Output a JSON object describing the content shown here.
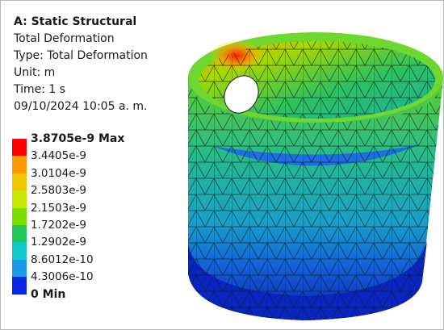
{
  "header": {
    "title": "A: Static Structural",
    "lines": [
      "Total Deformation",
      "Type: Total Deformation",
      "Unit: m",
      "Time: 1 s",
      "09/10/2024 10:05 a. m."
    ]
  },
  "legend": {
    "labels": [
      "3.8705e-9 Max",
      "3.4405e-9",
      "3.0104e-9",
      "2.5803e-9",
      "2.1503e-9",
      "1.7202e-9",
      "1.2902e-9",
      "8.6012e-10",
      "4.3006e-10",
      "0 Min"
    ],
    "colors": [
      "#ff0000",
      "#ff9a00",
      "#f0c800",
      "#c8e600",
      "#7ddc00",
      "#22c65a",
      "#12c8c8",
      "#1a9be6",
      "#0a28e6"
    ]
  }
}
